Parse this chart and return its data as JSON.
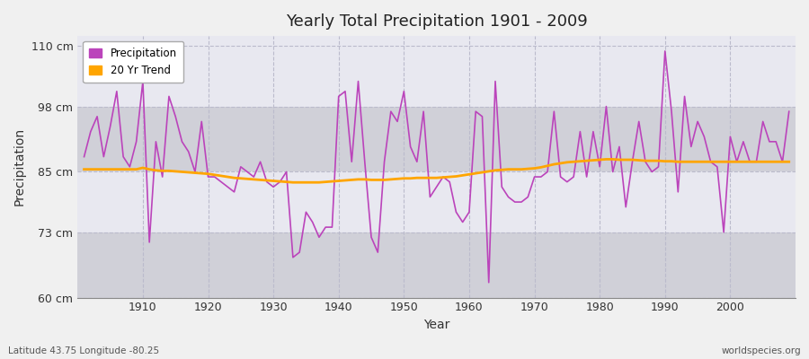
{
  "title": "Yearly Total Precipitation 1901 - 2009",
  "xlabel": "Year",
  "ylabel": "Precipitation",
  "left_label": "Latitude 43.75 Longitude -80.25",
  "right_label": "worldspecies.org",
  "years": [
    1901,
    1902,
    1903,
    1904,
    1905,
    1906,
    1907,
    1908,
    1909,
    1910,
    1911,
    1912,
    1913,
    1914,
    1915,
    1916,
    1917,
    1918,
    1919,
    1920,
    1921,
    1922,
    1923,
    1924,
    1925,
    1926,
    1927,
    1928,
    1929,
    1930,
    1931,
    1932,
    1933,
    1934,
    1935,
    1936,
    1937,
    1938,
    1939,
    1940,
    1941,
    1942,
    1943,
    1944,
    1945,
    1946,
    1947,
    1948,
    1949,
    1950,
    1951,
    1952,
    1953,
    1954,
    1955,
    1956,
    1957,
    1958,
    1959,
    1960,
    1961,
    1962,
    1963,
    1964,
    1965,
    1966,
    1967,
    1968,
    1969,
    1970,
    1971,
    1972,
    1973,
    1974,
    1975,
    1976,
    1977,
    1978,
    1979,
    1980,
    1981,
    1982,
    1983,
    1984,
    1985,
    1986,
    1987,
    1988,
    1989,
    1990,
    1991,
    1992,
    1993,
    1994,
    1995,
    1996,
    1997,
    1998,
    1999,
    2000,
    2001,
    2002,
    2003,
    2004,
    2005,
    2006,
    2007,
    2008,
    2009
  ],
  "precip": [
    88,
    93,
    96,
    88,
    94,
    101,
    88,
    86,
    91,
    103,
    71,
    91,
    84,
    100,
    96,
    91,
    89,
    85,
    95,
    84,
    84,
    83,
    82,
    81,
    86,
    85,
    84,
    87,
    83,
    82,
    83,
    85,
    68,
    69,
    77,
    75,
    72,
    74,
    74,
    100,
    101,
    87,
    103,
    87,
    72,
    69,
    87,
    97,
    95,
    101,
    90,
    87,
    97,
    80,
    82,
    84,
    83,
    77,
    75,
    77,
    97,
    96,
    63,
    103,
    82,
    80,
    79,
    79,
    80,
    84,
    84,
    85,
    97,
    84,
    83,
    84,
    93,
    84,
    93,
    86,
    98,
    85,
    90,
    78,
    87,
    95,
    87,
    85,
    86,
    109,
    97,
    81,
    100,
    90,
    95,
    92,
    87,
    86,
    73,
    92,
    87,
    91,
    87,
    87,
    95,
    91,
    91,
    87,
    97
  ],
  "trend": [
    85.5,
    85.5,
    85.5,
    85.5,
    85.5,
    85.5,
    85.5,
    85.5,
    85.5,
    85.8,
    85.5,
    85.3,
    85.2,
    85.2,
    85.1,
    85.0,
    84.9,
    84.8,
    84.7,
    84.6,
    84.4,
    84.2,
    84.0,
    83.8,
    83.7,
    83.6,
    83.5,
    83.4,
    83.3,
    83.2,
    83.1,
    83.0,
    82.9,
    82.9,
    82.9,
    82.9,
    82.9,
    83.0,
    83.1,
    83.2,
    83.3,
    83.4,
    83.5,
    83.5,
    83.4,
    83.4,
    83.4,
    83.5,
    83.6,
    83.7,
    83.7,
    83.8,
    83.8,
    83.8,
    83.8,
    83.9,
    84.0,
    84.1,
    84.3,
    84.5,
    84.7,
    84.9,
    85.1,
    85.3,
    85.4,
    85.5,
    85.5,
    85.5,
    85.6,
    85.7,
    85.9,
    86.2,
    86.5,
    86.7,
    86.9,
    87.0,
    87.1,
    87.2,
    87.3,
    87.4,
    87.5,
    87.5,
    87.4,
    87.4,
    87.4,
    87.3,
    87.2,
    87.2,
    87.2,
    87.1,
    87.1,
    87.0,
    87.0,
    87.0,
    87.0,
    87.0,
    87.0,
    87.0,
    87.0,
    87.0,
    87.0,
    87.0,
    87.0,
    87.0,
    87.0,
    87.0,
    87.0,
    87.0,
    87.0
  ],
  "precip_color": "#BB44BB",
  "trend_color": "#FFA500",
  "fig_bg_color": "#F0F0F0",
  "plot_bg_color": "#E0E0E8",
  "band_dark_color": "#D0D0D8",
  "band_light_color": "#E8E8F0",
  "grid_color": "#BBBBCC",
  "ylim": [
    60,
    112
  ],
  "yticks": [
    60,
    73,
    85,
    98,
    110
  ],
  "ytick_labels": [
    "60 cm",
    "73 cm",
    "85 cm",
    "98 cm",
    "110 cm"
  ],
  "xticks": [
    1910,
    1920,
    1930,
    1940,
    1950,
    1960,
    1970,
    1980,
    1990,
    2000
  ],
  "xlim": [
    1900,
    2010
  ]
}
